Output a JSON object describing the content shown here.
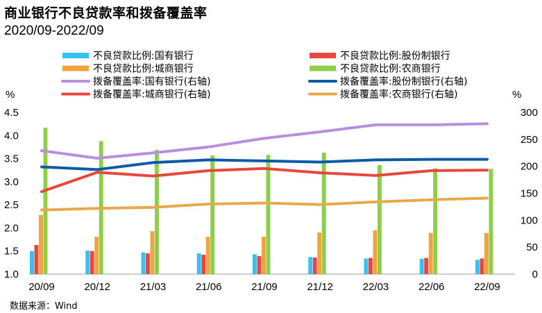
{
  "title": "商业银行不良贷款率和拨备覆盖率",
  "subtitle": "2020/09-2022/09",
  "source": "数据来源：Wind",
  "chart_data": {
    "type": "bar",
    "categories": [
      "20/09",
      "20/12",
      "21/03",
      "21/06",
      "21/09",
      "21/12",
      "22/03",
      "22/06",
      "22/09"
    ],
    "left_axis": {
      "unit": "%",
      "ylim": [
        1.0,
        4.5
      ],
      "ticks": [
        "1.0",
        "1.5",
        "2.0",
        "2.5",
        "3.0",
        "3.5",
        "4.0",
        "4.5"
      ]
    },
    "right_axis": {
      "unit": "%",
      "ylim": [
        0,
        300
      ],
      "ticks": [
        "0",
        "50",
        "100",
        "150",
        "200",
        "250",
        "300"
      ]
    },
    "grid": false,
    "legend_position": "top",
    "bar_series": [
      {
        "name": "不良贷款比例:国有银行",
        "color": "#33c3f0",
        "values": [
          1.5,
          1.51,
          1.47,
          1.45,
          1.43,
          1.37,
          1.34,
          1.33,
          1.31
        ]
      },
      {
        "name": "不良贷款比例:股份制银行",
        "color": "#e8473f",
        "values": [
          1.63,
          1.5,
          1.45,
          1.42,
          1.39,
          1.36,
          1.35,
          1.35,
          1.34
        ]
      },
      {
        "name": "不良贷款比例:城商银行",
        "color": "#f0a43a",
        "values": [
          2.28,
          1.81,
          1.93,
          1.81,
          1.81,
          1.9,
          1.95,
          1.89,
          1.89
        ]
      },
      {
        "name": "不良贷款比例:农商银行",
        "color": "#8dcf4a",
        "values": [
          4.17,
          3.88,
          3.69,
          3.57,
          3.58,
          3.63,
          3.36,
          3.29,
          3.28
        ]
      }
    ],
    "line_series": [
      {
        "name": "拨备覆盖率:国有银行(右轴)",
        "color": "#b98de0",
        "values": [
          229,
          215,
          225,
          236,
          252,
          264,
          277,
          277,
          279
        ]
      },
      {
        "name": "拨备覆盖率:股份制银行(右轴)",
        "color": "#0b5aa8",
        "values": [
          199,
          194,
          207,
          212,
          210,
          208,
          212,
          213,
          213
        ]
      },
      {
        "name": "拨备覆盖率:城商银行(右轴)",
        "color": "#e8473f",
        "values": [
          153,
          189,
          182,
          192,
          196,
          188,
          183,
          192,
          193
        ]
      },
      {
        "name": "拨备覆盖率:农商银行(右轴)",
        "color": "#e8a94a",
        "values": [
          119,
          122,
          124,
          130,
          132,
          129,
          134,
          138,
          141
        ]
      }
    ]
  }
}
